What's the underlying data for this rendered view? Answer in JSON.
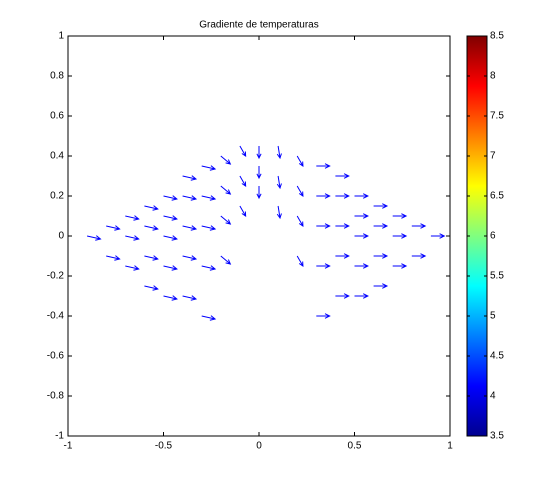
{
  "chart_data": {
    "type": "quiver",
    "title": "Gradiente de temperaturas",
    "color": "#0000ff",
    "x": [
      -0.9,
      -0.8,
      -0.8,
      -0.7,
      -0.7,
      -0.7,
      -0.6,
      -0.6,
      -0.6,
      -0.6,
      -0.5,
      -0.5,
      -0.5,
      -0.5,
      -0.5,
      -0.4,
      -0.4,
      -0.4,
      -0.4,
      -0.4,
      -0.3,
      -0.3,
      -0.3,
      -0.3,
      -0.3,
      -0.2,
      -0.2,
      -0.2,
      -0.1,
      -0.1,
      -0.1,
      -0.2,
      0.9,
      0.8,
      0.8,
      0.7,
      0.7,
      0.7,
      0.6,
      0.6,
      0.6,
      0.6,
      0.5,
      0.5,
      0.5,
      0.5,
      0.5,
      0.4,
      0.4,
      0.4,
      0.4,
      0.4,
      0.3,
      0.3,
      0.3,
      0.3,
      0.3,
      0.2,
      0.2,
      0.2,
      0.1,
      0.1,
      0.1,
      0.2,
      0,
      0,
      0
    ],
    "y": [
      0,
      0.05,
      -0.1,
      0.1,
      0,
      -0.15,
      0.15,
      0.05,
      -0.1,
      -0.25,
      0.2,
      0.1,
      0,
      -0.15,
      -0.3,
      0.3,
      0.2,
      0.05,
      -0.1,
      -0.3,
      0.35,
      0.2,
      0.05,
      -0.15,
      -0.4,
      0.4,
      0.25,
      0.1,
      0.45,
      0.3,
      0.15,
      -0.1,
      0,
      0.05,
      -0.1,
      0.1,
      0,
      -0.15,
      0.15,
      0.05,
      -0.1,
      -0.25,
      0.2,
      0.1,
      0,
      -0.15,
      -0.3,
      0.3,
      0.2,
      0.05,
      -0.1,
      -0.3,
      0.35,
      0.2,
      0.05,
      -0.15,
      -0.4,
      0.4,
      0.25,
      0.1,
      0.45,
      0.3,
      0.15,
      -0.1,
      0.45,
      0.35,
      0.25
    ],
    "u": [
      0.07,
      0.07,
      0.07,
      0.07,
      0.07,
      0.07,
      0.07,
      0.07,
      0.07,
      0.07,
      0.07,
      0.07,
      0.07,
      0.07,
      0.07,
      0.07,
      0.07,
      0.07,
      0.07,
      0.07,
      0.07,
      0.07,
      0.07,
      0.07,
      0.07,
      0.05,
      0.05,
      0.05,
      0.03,
      0.03,
      0.03,
      0.05,
      0.07,
      0.07,
      0.07,
      0.07,
      0.07,
      0.07,
      0.07,
      0.07,
      0.07,
      0.07,
      0.07,
      0.07,
      0.07,
      0.07,
      0.07,
      0.07,
      0.07,
      0.07,
      0.07,
      0.07,
      0.07,
      0.07,
      0.07,
      0.07,
      0.07,
      0.03,
      0.03,
      0.03,
      0.01,
      0.01,
      0.01,
      0.03,
      0,
      0,
      0
    ],
    "v": [
      -0.015,
      -0.015,
      -0.015,
      -0.015,
      -0.015,
      -0.015,
      -0.015,
      -0.015,
      -0.015,
      -0.015,
      -0.015,
      -0.015,
      -0.015,
      -0.015,
      -0.015,
      -0.015,
      -0.015,
      -0.015,
      -0.015,
      -0.015,
      -0.015,
      -0.015,
      -0.015,
      -0.015,
      -0.015,
      -0.04,
      -0.04,
      -0.04,
      -0.05,
      -0.05,
      -0.05,
      -0.04,
      0,
      0,
      0,
      0,
      0,
      0,
      0,
      0,
      0,
      0,
      0,
      0,
      0,
      0,
      0,
      0,
      0,
      0,
      0,
      0,
      0,
      0,
      0,
      0,
      0,
      -0.05,
      -0.05,
      -0.05,
      -0.06,
      -0.06,
      -0.06,
      -0.05,
      -0.06,
      -0.06,
      -0.06
    ],
    "xlim": [
      -1,
      1
    ],
    "xticks": [
      -1,
      -0.5,
      0,
      0.5,
      1
    ],
    "ylim": [
      -1,
      1
    ],
    "yticks": [
      -1,
      -0.8,
      -0.6,
      -0.4,
      -0.2,
      0,
      0.2,
      0.4,
      0.6,
      0.8,
      1
    ],
    "colorbar": {
      "lim": [
        3.5,
        8.5
      ],
      "ticks": [
        3.5,
        4,
        4.5,
        5,
        5.5,
        6,
        6.5,
        7,
        7.5,
        8,
        8.5
      ],
      "colormap": "jet"
    }
  }
}
